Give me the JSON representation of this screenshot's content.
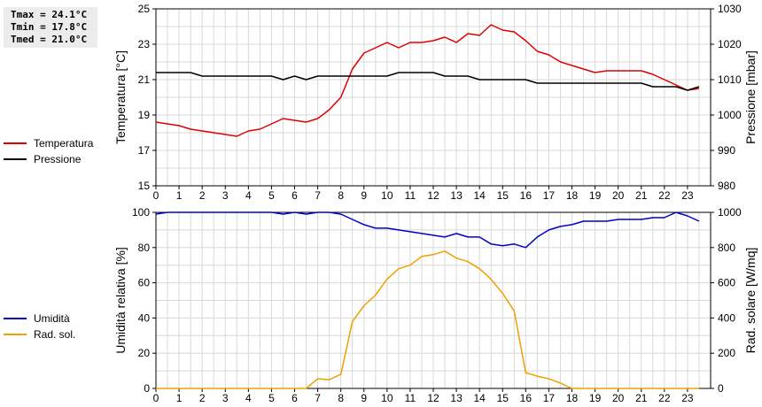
{
  "stats": {
    "tmax": "Tmax = 24.1°C",
    "tmin": "Tmin = 17.8°C",
    "tmed": "Tmed = 21.0°C"
  },
  "colors": {
    "temperature": "#e00000",
    "pressure": "#000000",
    "humidity": "#0000c8",
    "radiation": "#f0a000",
    "grid": "#d8d8d8"
  },
  "chart_data": [
    {
      "type": "line",
      "legend_placement": "left",
      "grid": true,
      "x_ticks": [
        0,
        1,
        2,
        3,
        4,
        5,
        6,
        7,
        8,
        9,
        10,
        11,
        12,
        13,
        14,
        15,
        16,
        17,
        18,
        19,
        20,
        21,
        22,
        23
      ],
      "xlim": [
        0,
        24
      ],
      "ylabel": "Temperatura [°C]",
      "ylim": [
        15,
        25
      ],
      "y_ticks": [
        15,
        17,
        19,
        21,
        23,
        25
      ],
      "ylabel_right": "Pressione [mbar]",
      "ylim_right": [
        980,
        1030
      ],
      "y_ticks_right": [
        980,
        990,
        1000,
        1010,
        1020,
        1030
      ],
      "series": [
        {
          "name": "Temperatura",
          "axis": "left",
          "x": [
            0,
            0.5,
            1,
            1.5,
            2,
            2.5,
            3,
            3.5,
            4,
            4.5,
            5,
            5.5,
            6,
            6.5,
            7,
            7.5,
            8,
            8.5,
            9,
            9.5,
            10,
            10.5,
            11,
            11.5,
            12,
            12.5,
            13,
            13.5,
            14,
            14.5,
            15,
            15.5,
            16,
            16.5,
            17,
            17.5,
            18,
            18.5,
            19,
            19.5,
            20,
            20.5,
            21,
            21.5,
            22,
            22.5,
            23,
            23.5
          ],
          "values": [
            18.6,
            18.5,
            18.4,
            18.2,
            18.1,
            18.0,
            17.9,
            17.8,
            18.1,
            18.2,
            18.5,
            18.8,
            18.7,
            18.6,
            18.8,
            19.3,
            20.0,
            21.6,
            22.5,
            22.8,
            23.1,
            22.8,
            23.1,
            23.1,
            23.2,
            23.4,
            23.1,
            23.6,
            23.5,
            24.1,
            23.8,
            23.7,
            23.2,
            22.6,
            22.4,
            22.0,
            21.8,
            21.6,
            21.4,
            21.5,
            21.5,
            21.5,
            21.5,
            21.3,
            21.0,
            20.7,
            20.4,
            20.5
          ]
        },
        {
          "name": "Pressione",
          "axis": "right",
          "x": [
            0,
            0.5,
            1,
            1.5,
            2,
            2.5,
            3,
            3.5,
            4,
            4.5,
            5,
            5.5,
            6,
            6.5,
            7,
            7.5,
            8,
            8.5,
            9,
            9.5,
            10,
            10.5,
            11,
            11.5,
            12,
            12.5,
            13,
            13.5,
            14,
            14.5,
            15,
            15.5,
            16,
            16.5,
            17,
            17.5,
            18,
            18.5,
            19,
            19.5,
            20,
            20.5,
            21,
            21.5,
            22,
            22.5,
            23,
            23.5
          ],
          "values": [
            1012,
            1012,
            1012,
            1012,
            1011,
            1011,
            1011,
            1011,
            1011,
            1011,
            1011,
            1010,
            1011,
            1010,
            1011,
            1011,
            1011,
            1011,
            1011,
            1011,
            1011,
            1012,
            1012,
            1012,
            1012,
            1011,
            1011,
            1011,
            1010,
            1010,
            1010,
            1010,
            1010,
            1009,
            1009,
            1009,
            1009,
            1009,
            1009,
            1009,
            1009,
            1009,
            1009,
            1008,
            1008,
            1008,
            1007,
            1008
          ]
        }
      ]
    },
    {
      "type": "line",
      "legend_placement": "left",
      "grid": true,
      "x_ticks": [
        0,
        1,
        2,
        3,
        4,
        5,
        6,
        7,
        8,
        9,
        10,
        11,
        12,
        13,
        14,
        15,
        16,
        17,
        18,
        19,
        20,
        21,
        22,
        23
      ],
      "xlim": [
        0,
        24
      ],
      "ylabel": "Umidità relativa [%]",
      "ylim": [
        0,
        100
      ],
      "y_ticks": [
        0,
        20,
        40,
        60,
        80,
        100
      ],
      "ylabel_right": "Rad. solare [W/mq]",
      "ylim_right": [
        0,
        1000
      ],
      "y_ticks_right": [
        0,
        200,
        400,
        600,
        800,
        1000
      ],
      "series": [
        {
          "name": "Umidità",
          "axis": "left",
          "x": [
            0,
            0.5,
            1,
            1.5,
            2,
            2.5,
            3,
            3.5,
            4,
            4.5,
            5,
            5.5,
            6,
            6.5,
            7,
            7.5,
            8,
            8.5,
            9,
            9.5,
            10,
            10.5,
            11,
            11.5,
            12,
            12.5,
            13,
            13.5,
            14,
            14.5,
            15,
            15.5,
            16,
            16.5,
            17,
            17.5,
            18,
            18.5,
            19,
            19.5,
            20,
            20.5,
            21,
            21.5,
            22,
            22.5,
            23,
            23.5
          ],
          "values": [
            99,
            100,
            100,
            100,
            100,
            100,
            100,
            100,
            100,
            100,
            100,
            99,
            100,
            99,
            100,
            100,
            99,
            96,
            93,
            91,
            91,
            90,
            89,
            88,
            87,
            86,
            88,
            86,
            86,
            82,
            81,
            82,
            80,
            86,
            90,
            92,
            93,
            95,
            95,
            95,
            96,
            96,
            96,
            97,
            97,
            100,
            98,
            95
          ]
        },
        {
          "name": "Rad. sol.",
          "axis": "right",
          "x": [
            0,
            0.5,
            1,
            1.5,
            2,
            2.5,
            3,
            3.5,
            4,
            4.5,
            5,
            5.5,
            6,
            6.5,
            7,
            7.5,
            8,
            8.5,
            9,
            9.5,
            10,
            10.5,
            11,
            11.5,
            12,
            12.5,
            13,
            13.5,
            14,
            14.5,
            15,
            15.5,
            16,
            16.5,
            17,
            17.5,
            18,
            18.5,
            19,
            19.5,
            20,
            20.5,
            21,
            21.5,
            22,
            22.5,
            23,
            23.5
          ],
          "values": [
            0,
            0,
            0,
            0,
            0,
            0,
            0,
            0,
            0,
            0,
            0,
            0,
            0,
            0,
            55,
            50,
            80,
            380,
            470,
            530,
            620,
            680,
            700,
            750,
            760,
            780,
            740,
            720,
            680,
            620,
            540,
            440,
            90,
            70,
            55,
            30,
            0,
            0,
            0,
            0,
            0,
            0,
            0,
            0,
            0,
            0,
            0,
            0
          ]
        }
      ]
    }
  ]
}
